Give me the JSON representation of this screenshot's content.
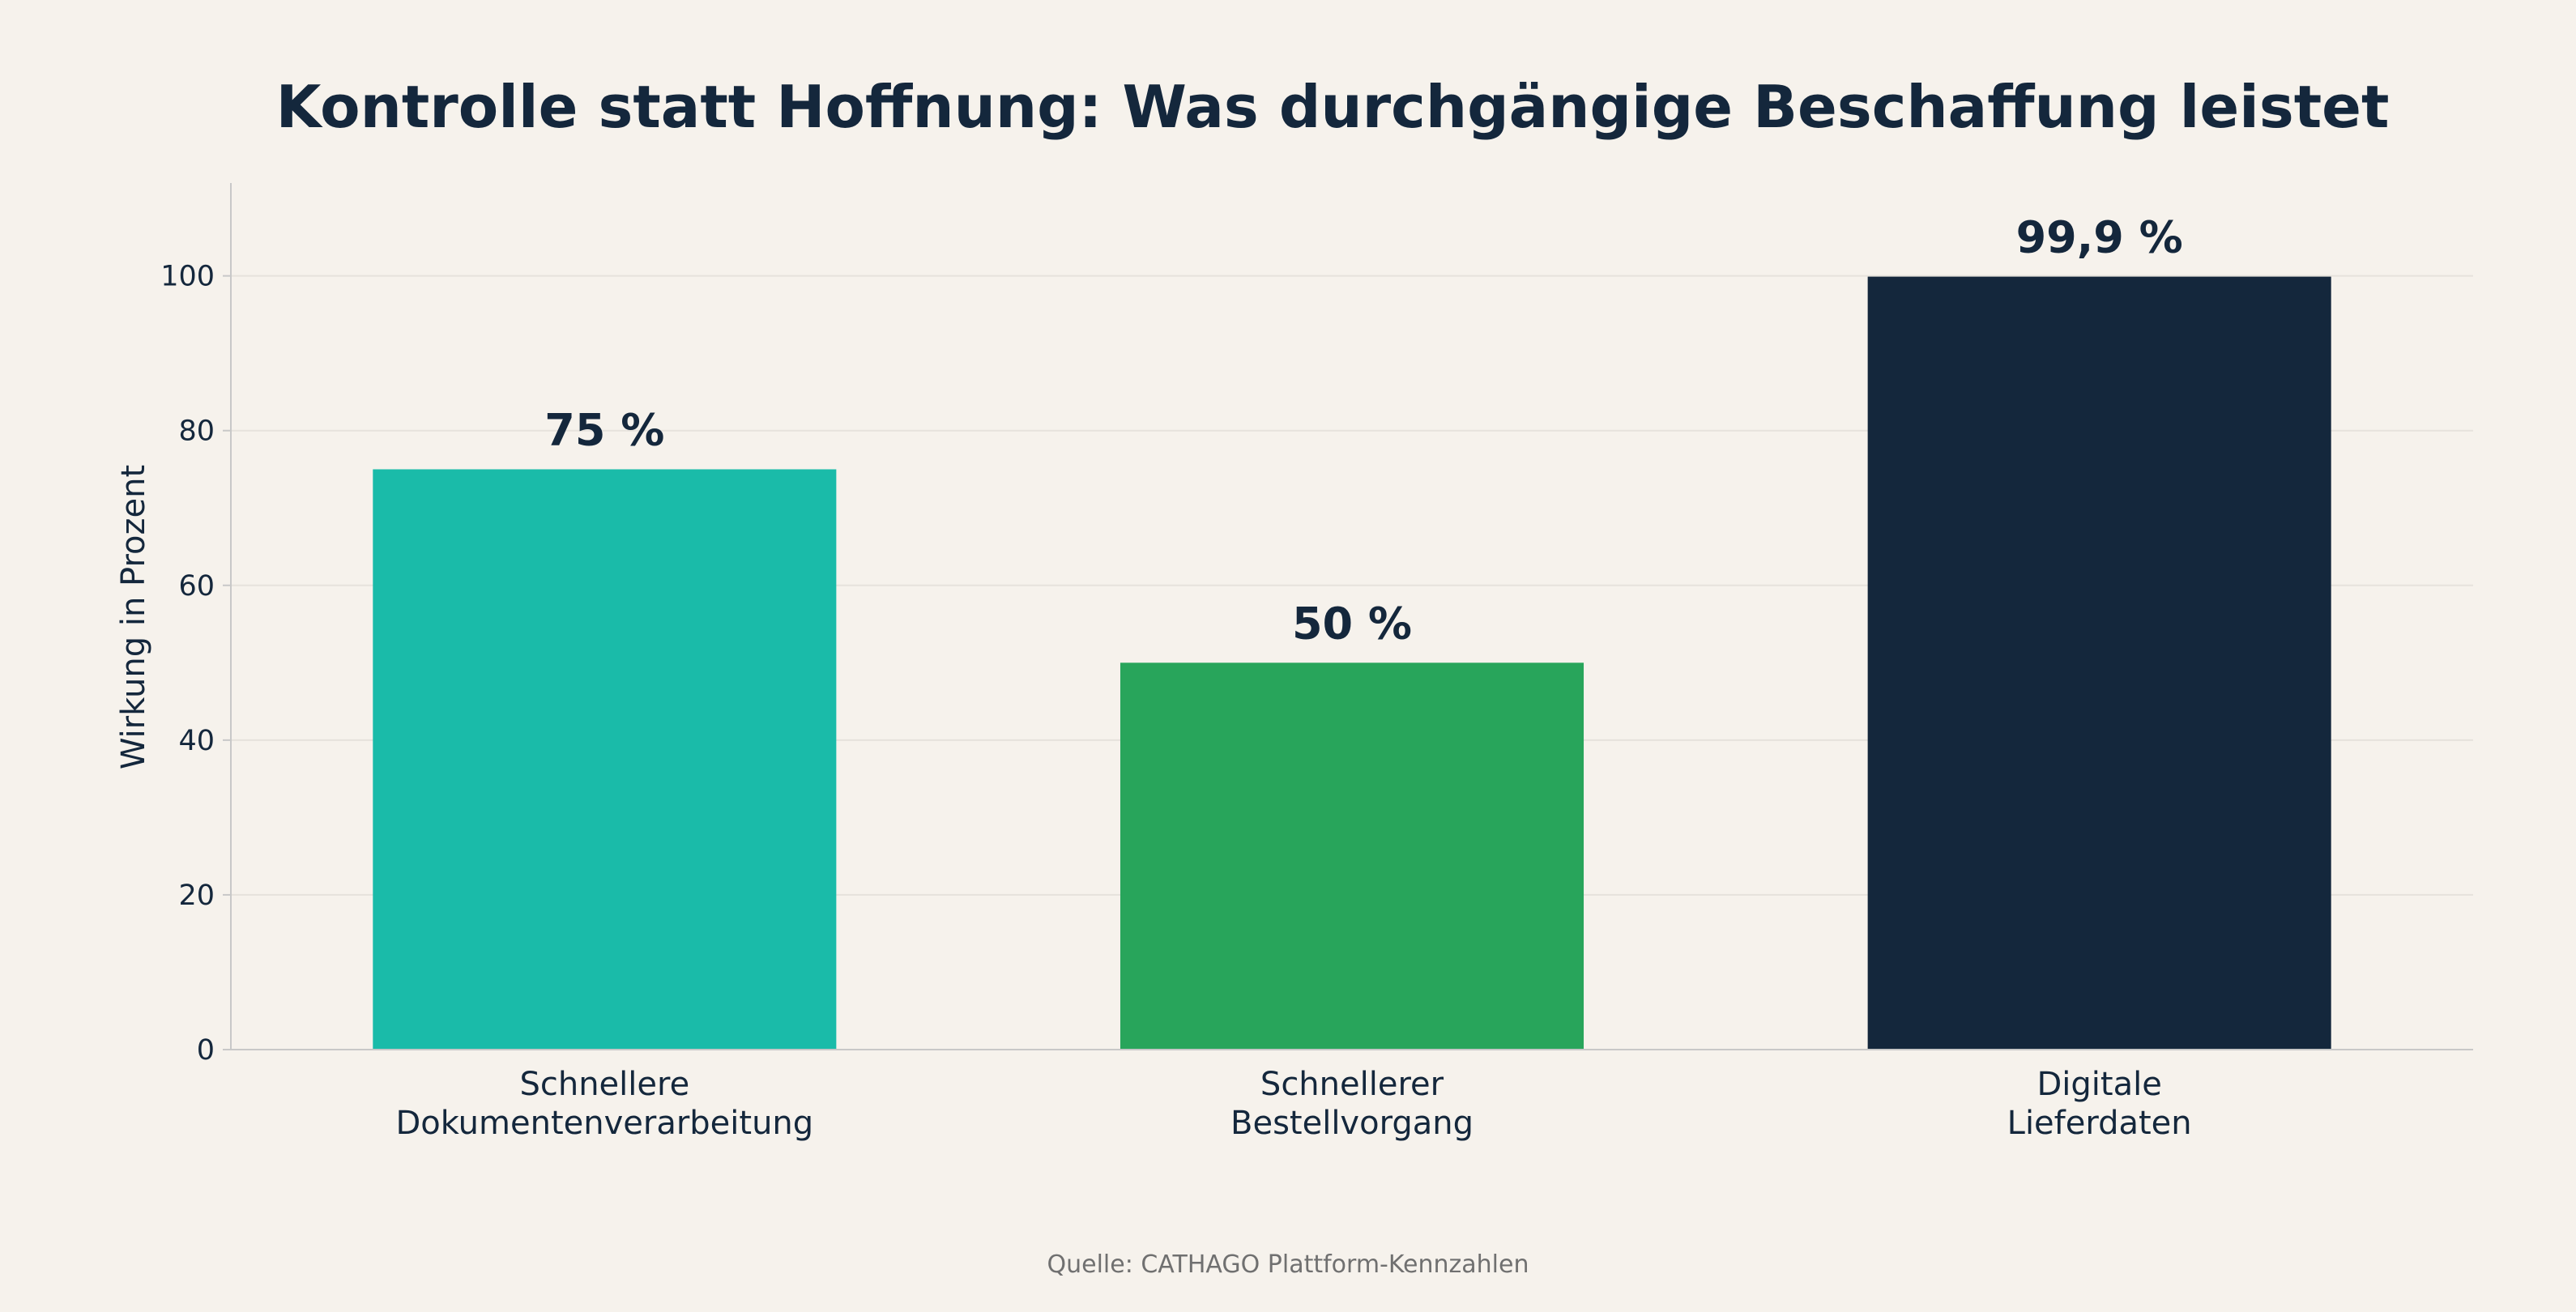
{
  "chart_data": {
    "type": "bar",
    "title": "Kontrolle statt Hoffnung: Was durchgängige Beschaffung leistet",
    "ylabel": "Wirkung in Prozent",
    "xlabel": "",
    "ylim": [
      0,
      112
    ],
    "yticks": [
      0,
      20,
      40,
      60,
      80,
      100
    ],
    "grid": true,
    "categories": [
      [
        "Schnellere",
        "Dokumentenverarbeitung"
      ],
      [
        "Schnellerer",
        "Bestellvorgang"
      ],
      [
        "Digitale",
        "Lieferdaten"
      ]
    ],
    "values": [
      75,
      50,
      99.9
    ],
    "value_labels": [
      "75 %",
      "50 %",
      "99,9 %"
    ],
    "colors": [
      "#1abba9",
      "#28a55b",
      "#14273c"
    ],
    "source": "Quelle: CATHAGO Plattform-Kennzahlen"
  },
  "theme": {
    "background": "#f6f2ec",
    "text": "#14273c",
    "grid": "#e6e2dc",
    "axis": "#c8c8c8"
  }
}
